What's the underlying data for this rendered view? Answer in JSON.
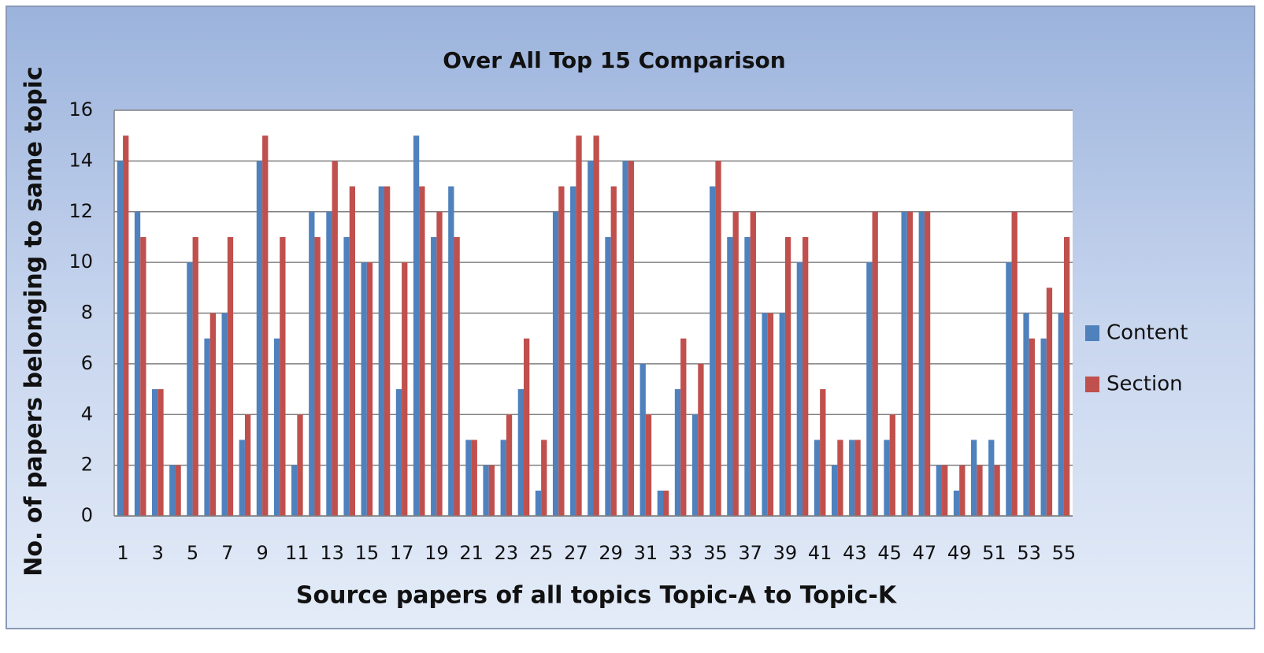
{
  "chart_data": {
    "type": "bar",
    "title": "Over All Top 15 Comparison",
    "x_label": "Source papers of all topics Topic-A to Topic-K",
    "y_label": "No. of papers belonging to same topic",
    "categories": [
      "1",
      null,
      "3",
      null,
      "5",
      null,
      "7",
      null,
      "9",
      null,
      "11",
      null,
      "13",
      null,
      "15",
      null,
      "17",
      null,
      "19",
      null,
      "21",
      null,
      "23",
      null,
      "25",
      null,
      "27",
      null,
      "29",
      null,
      "31",
      null,
      "33",
      null,
      "35",
      null,
      "37",
      null,
      "39",
      null,
      "41",
      null,
      "43",
      null,
      "45",
      null,
      "47",
      null,
      "49",
      null,
      "51",
      null,
      "53",
      null,
      "55"
    ],
    "series": [
      {
        "name": "Content",
        "color": "#4f81bd",
        "values": [
          14,
          12,
          5,
          2,
          10,
          7,
          8,
          3,
          14,
          7,
          2,
          12,
          12,
          11,
          10,
          13,
          5,
          15,
          11,
          13,
          3,
          2,
          3,
          5,
          1,
          12,
          13,
          14,
          11,
          14,
          6,
          1,
          5,
          4,
          13,
          11,
          11,
          8,
          8,
          10,
          3,
          2,
          3,
          10,
          3,
          12,
          12,
          2,
          1,
          3,
          3,
          10,
          8,
          7,
          8
        ]
      },
      {
        "name": "Section",
        "color": "#c0504d",
        "values": [
          15,
          11,
          5,
          2,
          11,
          8,
          11,
          4,
          15,
          11,
          4,
          11,
          14,
          13,
          10,
          13,
          10,
          13,
          12,
          11,
          3,
          2,
          4,
          7,
          3,
          13,
          15,
          15,
          13,
          14,
          4,
          1,
          7,
          6,
          14,
          12,
          12,
          8,
          11,
          11,
          5,
          3,
          3,
          12,
          4,
          12,
          12,
          2,
          2,
          2,
          2,
          12,
          7,
          9,
          11
        ]
      }
    ],
    "ylim": [
      0,
      16
    ],
    "yticks": [
      0,
      2,
      4,
      6,
      8,
      10,
      12,
      14,
      16
    ],
    "grid": true,
    "legend": "right"
  }
}
